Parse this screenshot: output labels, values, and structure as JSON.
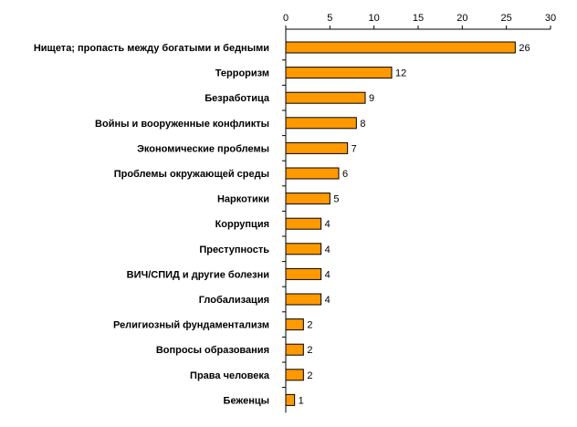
{
  "chart_data": {
    "type": "bar",
    "orientation": "horizontal",
    "categories": [
      "Нищета; пропасть между богатыми и бедными",
      "Терроризм",
      "Безработица",
      "Войны и вооруженные конфликты",
      "Экономические проблемы",
      "Проблемы окружающей среды",
      "Наркотики",
      "Коррупция",
      "Преступность",
      "ВИЧ/СПИД и другие болезни",
      "Глобализация",
      "Религиозный фундаментализм",
      "Вопросы образования",
      "Права человека",
      "Беженцы"
    ],
    "values": [
      26,
      12,
      9,
      8,
      7,
      6,
      5,
      4,
      4,
      4,
      4,
      2,
      2,
      2,
      1
    ],
    "xlim": [
      0,
      30
    ],
    "xticks": [
      0,
      5,
      10,
      15,
      20,
      25,
      30
    ],
    "x_axis_position": "top",
    "grid": false,
    "legend": "none",
    "bar_color": "#FF9900",
    "bar_edge_color": "#000000"
  }
}
